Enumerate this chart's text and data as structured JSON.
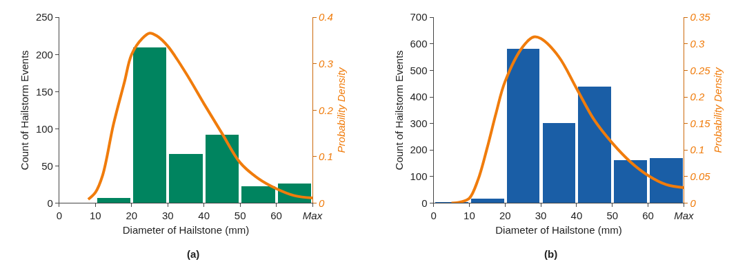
{
  "chart_data": [
    {
      "type": "histogram",
      "xlabel": "Diameter of Hailstone (mm)",
      "ylabel": "Count of Hailstorm Events",
      "y2label": "Probability Density",
      "bins": [
        0,
        10,
        20,
        30,
        40,
        50,
        60,
        70
      ],
      "xlim": [
        0,
        70
      ],
      "xticks": [
        0,
        10,
        20,
        30,
        40,
        50,
        60,
        {
          "value": 70,
          "label": "Max"
        }
      ],
      "ylim": [
        0,
        250
      ],
      "yticks": [
        0,
        50,
        100,
        150,
        200,
        250
      ],
      "y2lim": [
        0,
        0.4
      ],
      "y2ticks": [
        0,
        0.1,
        0.2,
        0.3,
        0.4
      ],
      "series": [
        {
          "color": "#00845f",
          "values": [
            0,
            7,
            209,
            66,
            92,
            22,
            26
          ]
        },
        {
          "type": "line",
          "axis": "y2",
          "color": "#f07c0c",
          "x": [
            8,
            10,
            12,
            15,
            18,
            20,
            23,
            25,
            27,
            30,
            35,
            40,
            45,
            50,
            55,
            60,
            65,
            70
          ],
          "values": [
            0.008,
            0.023,
            0.06,
            0.17,
            0.26,
            0.32,
            0.355,
            0.366,
            0.36,
            0.338,
            0.28,
            0.214,
            0.15,
            0.087,
            0.053,
            0.031,
            0.016,
            0.011
          ]
        }
      ],
      "annotations": [
        "(a)"
      ]
    },
    {
      "type": "histogram",
      "xlabel": "Diameter of Hailstone (mm)",
      "ylabel": "Count of Hailstorm Events",
      "y2label": "Probability Density",
      "bins": [
        0,
        10,
        20,
        30,
        40,
        50,
        60,
        70
      ],
      "xlim": [
        0,
        70
      ],
      "xticks": [
        0,
        10,
        20,
        30,
        40,
        50,
        60,
        {
          "value": 70,
          "label": "Max"
        }
      ],
      "ylim": [
        0,
        700
      ],
      "yticks": [
        0,
        100,
        200,
        300,
        400,
        500,
        600,
        700
      ],
      "y2lim": [
        0,
        0.35
      ],
      "y2ticks": [
        0,
        0.05,
        0.1,
        0.15,
        0.2,
        0.25,
        0.3,
        0.35
      ],
      "series": [
        {
          "color": "#1a5ea6",
          "values": [
            3,
            16,
            581,
            302,
            439,
            160,
            170
          ]
        },
        {
          "type": "line",
          "axis": "y2",
          "color": "#f07c0c",
          "x": [
            5,
            7.5,
            10,
            12.5,
            15,
            17.5,
            20,
            25,
            28,
            30,
            35,
            40,
            45,
            50,
            55,
            60,
            65,
            70
          ],
          "values": [
            0,
            0.002,
            0.009,
            0.045,
            0.104,
            0.17,
            0.229,
            0.295,
            0.313,
            0.31,
            0.276,
            0.216,
            0.156,
            0.113,
            0.078,
            0.052,
            0.035,
            0.029
          ]
        }
      ],
      "annotations": [
        "(b)"
      ]
    }
  ]
}
